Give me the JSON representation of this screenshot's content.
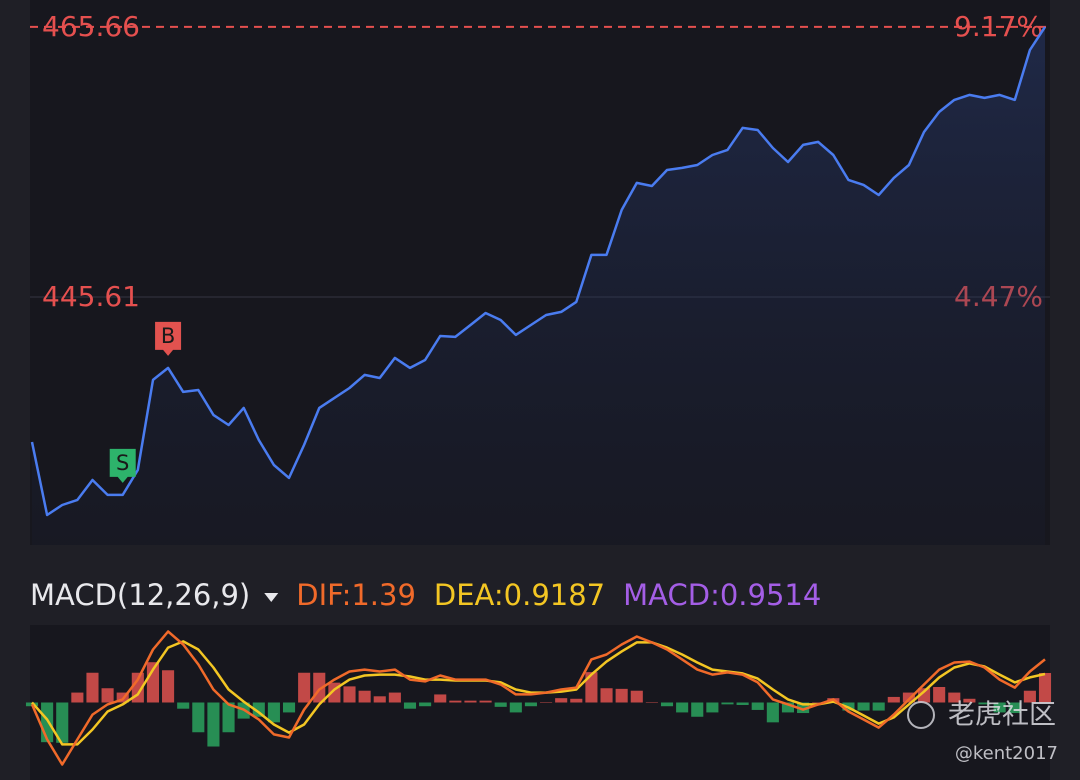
{
  "chart_data": [
    {
      "type": "line",
      "series": [
        {
          "color": "#4a7cf0",
          "values": [
            434.84,
            429.42,
            430.16,
            430.54,
            432.02,
            430.91,
            430.91,
            432.76,
            439.45,
            440.34,
            438.56,
            438.7,
            436.85,
            436.1,
            437.37,
            434.99,
            433.13,
            432.17,
            434.62,
            437.37,
            438.11,
            438.85,
            439.82,
            439.59,
            441.08,
            440.34,
            440.93,
            442.71,
            442.64,
            443.53,
            444.42,
            443.9,
            442.79,
            443.53,
            444.27,
            444.5,
            445.24,
            448.73,
            448.73,
            452.07,
            454.08,
            453.85,
            455.04,
            455.19,
            455.41,
            456.15,
            456.53,
            458.16,
            458.01,
            456.67,
            455.63,
            456.9,
            457.12,
            456.15,
            454.3,
            453.93,
            453.18,
            454.45,
            455.41,
            457.86,
            459.35,
            460.24,
            460.61,
            460.39,
            460.61,
            460.24,
            463.95,
            465.66
          ]
        }
      ],
      "ylim": [
        427.19,
        467.66
      ],
      "yticks": [
        445.61,
        465.66
      ],
      "y2lim": [
        0.15,
        9.64
      ],
      "y2ticks": [
        {
          "value": 4.47,
          "label": "4.47%"
        },
        {
          "value": 9.17,
          "label": "9.17%"
        }
      ],
      "markers": [
        {
          "label": "S",
          "index": 6,
          "color": "#2db36b"
        },
        {
          "label": "B",
          "index": 9,
          "color": "#e2524f"
        }
      ],
      "label_color": "#e5504f"
    },
    {
      "type": "macd",
      "title": "MACD(12,26,9)",
      "ylim": [
        -2.5,
        2.5
      ],
      "series": [
        {
          "name": "DIF:1.39",
          "color": "#f06a2a",
          "values": [
            -0.06,
            -1.19,
            -2.0,
            -1.19,
            -0.39,
            -0.06,
            0.1,
            0.74,
            1.71,
            2.29,
            1.87,
            1.23,
            0.42,
            -0.06,
            -0.23,
            -0.55,
            -1.03,
            -1.13,
            -0.23,
            0.42,
            0.74,
            1.0,
            1.06,
            1.0,
            1.06,
            0.74,
            0.68,
            0.87,
            0.74,
            0.74,
            0.74,
            0.58,
            0.26,
            0.26,
            0.32,
            0.42,
            0.48,
            1.39,
            1.55,
            1.87,
            2.13,
            1.94,
            1.71,
            1.39,
            1.06,
            0.9,
            0.97,
            0.9,
            0.65,
            0.1,
            -0.06,
            -0.23,
            -0.06,
            0.1,
            -0.29,
            -0.55,
            -0.81,
            -0.39,
            0.1,
            0.58,
            1.06,
            1.29,
            1.32,
            1.13,
            0.74,
            0.48,
            1.0,
            1.39
          ]
        },
        {
          "name": "DEA:0.9187",
          "color": "#f3c623",
          "values": [
            0,
            -0.55,
            -1.35,
            -1.35,
            -0.87,
            -0.29,
            -0.06,
            0.26,
            1.06,
            1.77,
            1.97,
            1.71,
            1.13,
            0.42,
            0.03,
            -0.32,
            -0.71,
            -0.97,
            -0.71,
            -0.06,
            0.42,
            0.74,
            0.87,
            0.9,
            0.9,
            0.84,
            0.74,
            0.74,
            0.71,
            0.71,
            0.71,
            0.65,
            0.42,
            0.32,
            0.32,
            0.35,
            0.42,
            0.9,
            1.32,
            1.65,
            1.94,
            1.94,
            1.77,
            1.55,
            1.29,
            1.06,
            1.0,
            0.94,
            0.77,
            0.42,
            0.1,
            -0.06,
            -0.06,
            0.03,
            -0.16,
            -0.42,
            -0.68,
            -0.48,
            -0.06,
            0.35,
            0.81,
            1.13,
            1.26,
            1.16,
            0.9,
            0.65,
            0.81,
            0.9187
          ]
        },
        {
          "name": "MACD:0.9514",
          "color": "#a45ee6",
          "up_color": "#e0524f",
          "down_color": "#2aa35e",
          "values": [
            -0.12,
            -1.28,
            -1.3,
            0.32,
            0.96,
            0.46,
            0.32,
            0.96,
            1.3,
            1.04,
            -0.2,
            -0.96,
            -1.42,
            -0.96,
            -0.52,
            -0.46,
            -0.64,
            -0.32,
            0.96,
            0.96,
            0.64,
            0.52,
            0.38,
            0.2,
            0.32,
            -0.2,
            -0.12,
            0.26,
            0.06,
            0.06,
            0.06,
            -0.14,
            -0.32,
            -0.12,
            0,
            0.14,
            0.12,
            0.98,
            0.46,
            0.44,
            0.38,
            0,
            -0.12,
            -0.32,
            -0.46,
            -0.32,
            -0.06,
            -0.08,
            -0.24,
            -0.64,
            -0.32,
            -0.34,
            0,
            0.14,
            -0.26,
            -0.26,
            -0.26,
            0.18,
            0.32,
            0.46,
            0.5,
            0.32,
            0.12,
            -0.06,
            -0.32,
            -0.34,
            0.38,
            0.9514
          ]
        }
      ]
    }
  ],
  "watermark": {
    "text": "老虎社区",
    "author": "@kent2017"
  }
}
